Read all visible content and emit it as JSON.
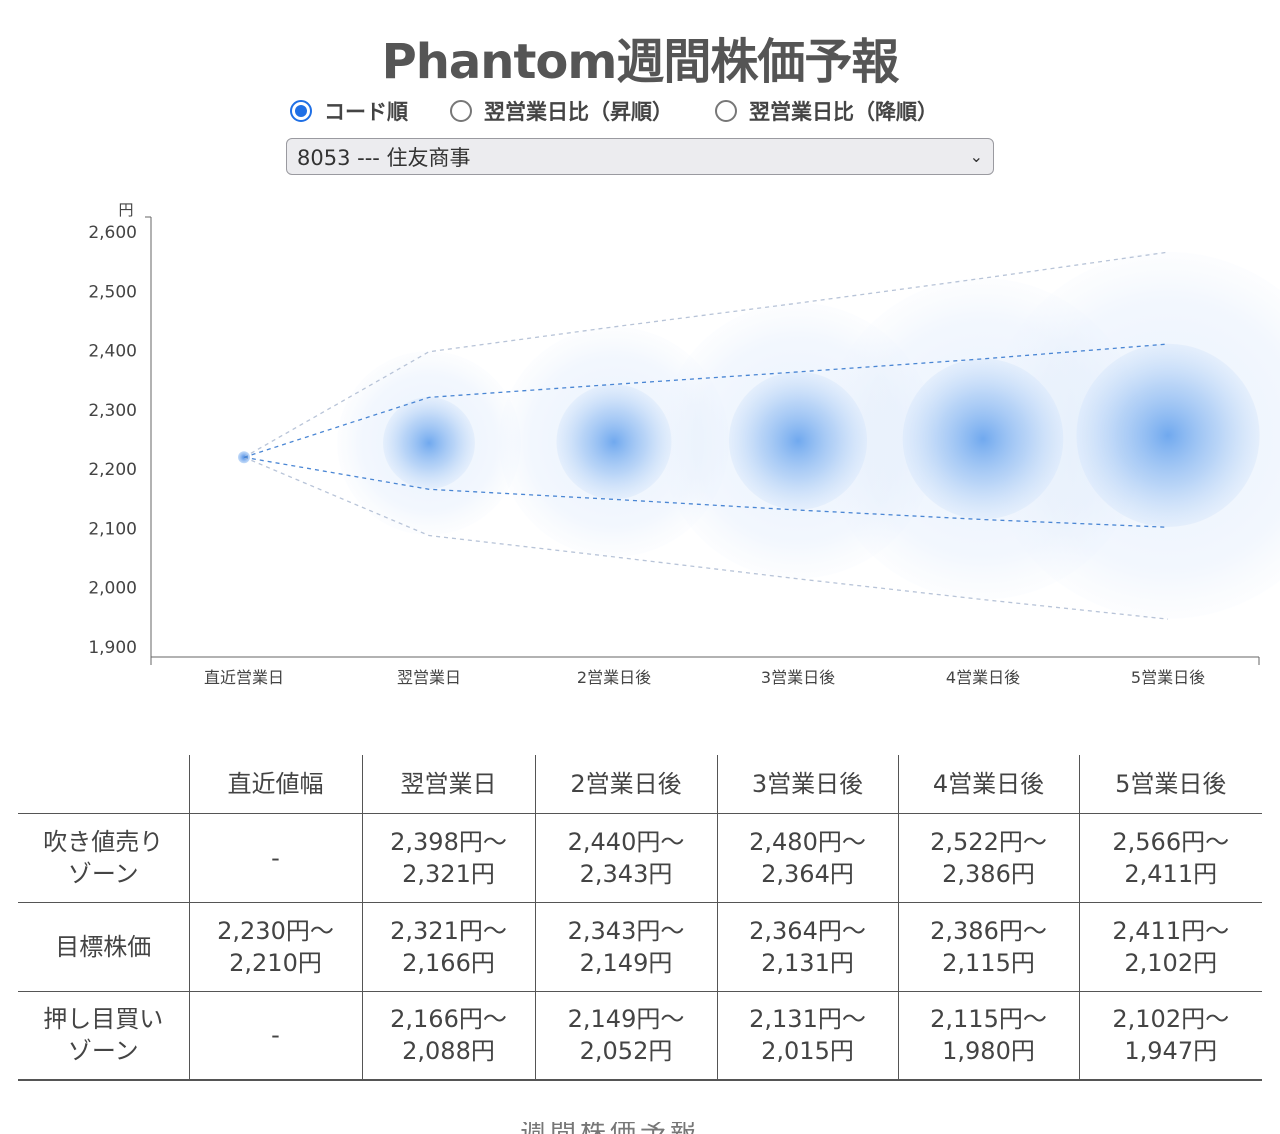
{
  "page": {
    "title": "Phantom週間株価予報"
  },
  "sort_options": [
    {
      "label": "コード順",
      "checked": true
    },
    {
      "label": "翌営業日比（昇順）",
      "checked": false
    },
    {
      "label": "翌営業日比（降順）",
      "checked": false
    }
  ],
  "stock_select": {
    "value": "8053 --- 住友商事"
  },
  "chart_data": {
    "type": "scatter",
    "title": "",
    "ylabel": "円",
    "xlabel": "",
    "ylim": [
      1900,
      2600
    ],
    "yticks": [
      "2,600",
      "2,500",
      "2,400",
      "2,300",
      "2,200",
      "2,100",
      "2,000",
      "1,900"
    ],
    "ytick_values": [
      2600,
      2500,
      2400,
      2300,
      2200,
      2100,
      2000,
      1900
    ],
    "categories": [
      "直近営業日",
      "翌営業日",
      "2営業日後",
      "3営業日後",
      "4営業日後",
      "5営業日後"
    ],
    "center": [
      2220,
      2244,
      2246,
      2248,
      2251,
      2257
    ],
    "upper_inner": [
      2220,
      2321,
      2343,
      2364,
      2386,
      2411
    ],
    "lower_inner": [
      2220,
      2166,
      2149,
      2131,
      2115,
      2102
    ],
    "upper_outer": [
      2220,
      2398,
      2440,
      2480,
      2522,
      2566
    ],
    "lower_outer": [
      2220,
      2088,
      2052,
      2015,
      1980,
      1947
    ],
    "grid": false,
    "colors": {
      "bubble": "#6aa6ee",
      "line": "#4a86d4",
      "outer_line": "#b8c4d8"
    }
  },
  "table": {
    "headers": [
      "",
      "直近値幅",
      "翌営業日",
      "2営業日後",
      "3営業日後",
      "4営業日後",
      "5営業日後"
    ],
    "rows": [
      {
        "label": [
          "吹き値売り",
          "ゾーン"
        ],
        "cells": [
          [
            "-",
            ""
          ],
          [
            "2,398円〜",
            "2,321円"
          ],
          [
            "2,440円〜",
            "2,343円"
          ],
          [
            "2,480円〜",
            "2,364円"
          ],
          [
            "2,522円〜",
            "2,386円"
          ],
          [
            "2,566円〜",
            "2,411円"
          ]
        ]
      },
      {
        "label": [
          "目標株価",
          ""
        ],
        "cells": [
          [
            "2,230円〜",
            "2,210円"
          ],
          [
            "2,321円〜",
            "2,166円"
          ],
          [
            "2,343円〜",
            "2,149円"
          ],
          [
            "2,364円〜",
            "2,131円"
          ],
          [
            "2,386円〜",
            "2,115円"
          ],
          [
            "2,411円〜",
            "2,102円"
          ]
        ]
      },
      {
        "label": [
          "押し目買い",
          "ゾーン"
        ],
        "cells": [
          [
            "-",
            ""
          ],
          [
            "2,166円〜",
            "2,088円"
          ],
          [
            "2,149円〜",
            "2,052円"
          ],
          [
            "2,131円〜",
            "2,015円"
          ],
          [
            "2,115円〜",
            "1,980円"
          ],
          [
            "2,102円〜",
            "1,947円"
          ]
        ]
      }
    ]
  },
  "footer": {
    "heading": "週間株価予報"
  }
}
